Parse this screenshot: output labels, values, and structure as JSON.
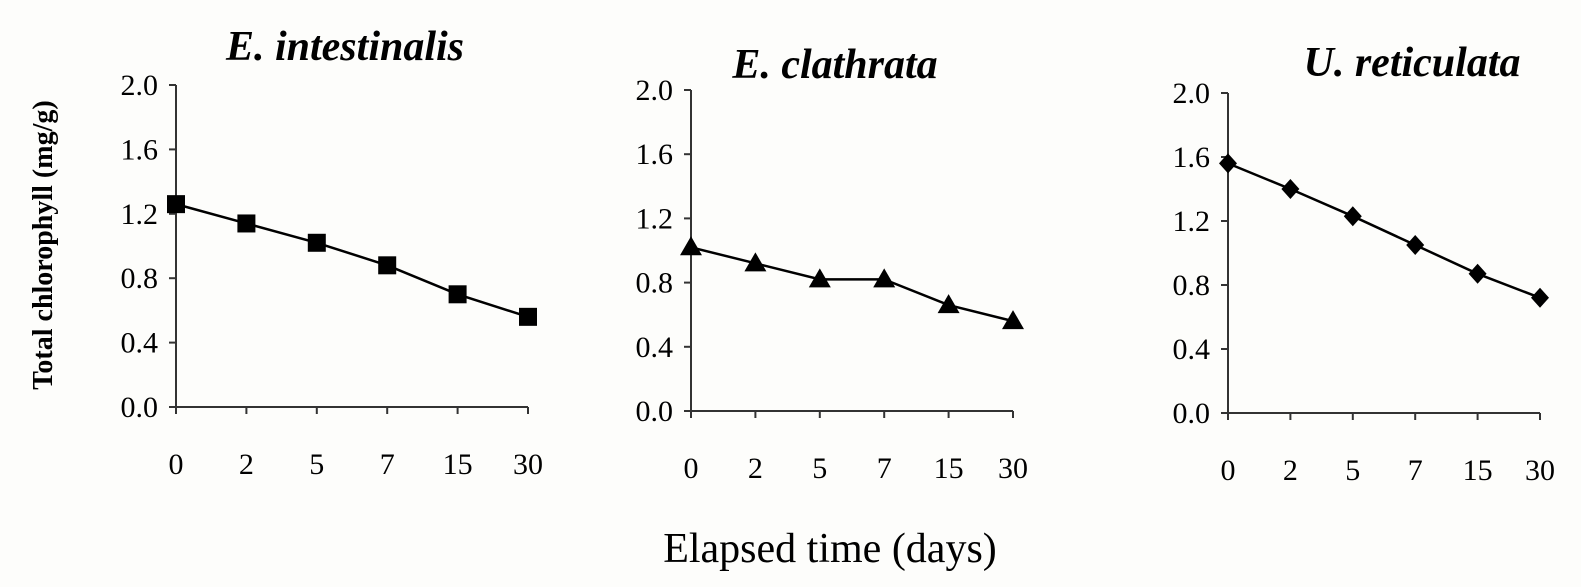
{
  "figure": {
    "ylabel": "Total chlorophyll (mg/g)",
    "xlabel": "Elapsed time (days)"
  },
  "chart_data": [
    {
      "type": "line",
      "title": "E. intestinalis",
      "x_categories": [
        "0",
        "2",
        "5",
        "7",
        "15",
        "30"
      ],
      "values": [
        1.26,
        1.14,
        1.02,
        0.88,
        0.7,
        0.56
      ],
      "marker": "square",
      "ylim": [
        0.0,
        2.0
      ],
      "yticks": [
        "0.0",
        "0.4",
        "0.8",
        "1.2",
        "1.6",
        "2.0"
      ],
      "xlabel": "",
      "ylabel": "Total chlorophyll (mg/g)",
      "grid": false
    },
    {
      "type": "line",
      "title": "E. clathrata",
      "x_categories": [
        "0",
        "2",
        "5",
        "7",
        "15",
        "30"
      ],
      "values": [
        1.02,
        0.92,
        0.82,
        0.82,
        0.66,
        0.56
      ],
      "marker": "triangle",
      "ylim": [
        0.0,
        2.0
      ],
      "yticks": [
        "0.0",
        "0.4",
        "0.8",
        "1.2",
        "1.6",
        "2.0"
      ],
      "xlabel": "",
      "ylabel": "",
      "grid": false
    },
    {
      "type": "line",
      "title": "U. reticulata",
      "x_categories": [
        "0",
        "2",
        "5",
        "7",
        "15",
        "30"
      ],
      "values": [
        1.56,
        1.4,
        1.23,
        1.05,
        0.87,
        0.72
      ],
      "marker": "diamond",
      "ylim": [
        0.0,
        2.0
      ],
      "yticks": [
        "0.0",
        "0.4",
        "0.8",
        "1.2",
        "1.6",
        "2.0"
      ],
      "xlabel": "",
      "ylabel": "",
      "grid": false
    }
  ]
}
